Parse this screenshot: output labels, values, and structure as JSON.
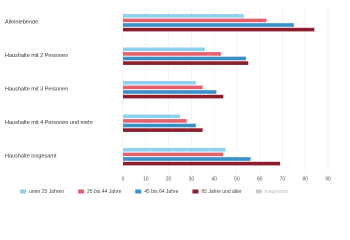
{
  "chart_data": {
    "type": "bar",
    "orientation": "horizontal",
    "categories": [
      "Alleinlebende",
      "Haushalte mit 2 Personen",
      "Haushalte mit 3 Personen",
      "Haushalte mit 4 Personen und mehr",
      "Haushalte insgesamt"
    ],
    "series": [
      {
        "name": "unter 25 Jahren",
        "color": "#8fd0ef",
        "values": [
          53,
          36,
          32,
          25,
          45
        ]
      },
      {
        "name": "25 bis 44 Jahre",
        "color": "#e5606f",
        "values": [
          63,
          43,
          35,
          28,
          44
        ]
      },
      {
        "name": "45 bis 64 Jahre",
        "color": "#3a8fc7",
        "values": [
          75,
          54,
          41,
          32,
          56
        ]
      },
      {
        "name": "65 Jahre und älter",
        "color": "#8b1d2c",
        "values": [
          84,
          55,
          44,
          35,
          69
        ]
      },
      {
        "name": "Insgesamt",
        "color": "#cccccc",
        "values": [
          null,
          null,
          null,
          null,
          null
        ],
        "hidden": true
      }
    ],
    "xlim": [
      0,
      90
    ],
    "xticks": [
      0,
      10,
      20,
      30,
      40,
      50,
      60,
      70,
      80,
      90
    ],
    "grid": true
  }
}
